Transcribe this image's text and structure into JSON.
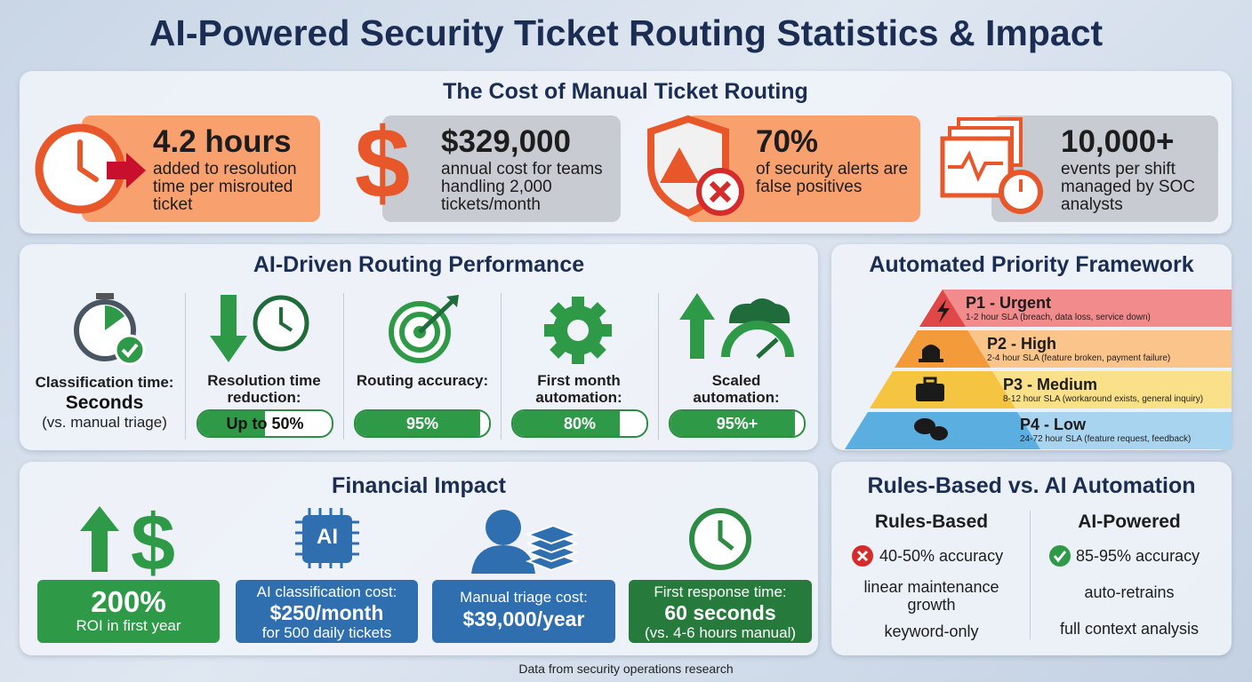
{
  "title": "AI-Powered Security Ticket Routing Statistics & Impact",
  "cost": {
    "heading": "The Cost of Manual Ticket Routing",
    "cards": [
      {
        "value": "4.2 hours",
        "description": "added to resolution time per misrouted ticket"
      },
      {
        "value": "$329,000",
        "description": "annual cost for teams handling 2,000 tickets/month"
      },
      {
        "value": "70%",
        "description": "of security alerts are false positives"
      },
      {
        "value": "10,000+",
        "description": "events per shift managed by SOC analysts"
      }
    ]
  },
  "performance": {
    "heading": "AI-Driven Routing Performance",
    "items": [
      {
        "label": "Classification time:",
        "value": "Seconds",
        "note": "(vs. manual triage)"
      },
      {
        "label": "Resolution time reduction:",
        "value": "Up to 50%"
      },
      {
        "label": "Routing accuracy:",
        "value": "95%"
      },
      {
        "label": "First month automation:",
        "value": "80%"
      },
      {
        "label": "Scaled automation:",
        "value": "95%+"
      }
    ]
  },
  "priority": {
    "heading": "Automated Priority Framework",
    "levels": [
      {
        "name": "P1 - Urgent",
        "sla": "1-2 hour SLA (breach, data loss, service down)"
      },
      {
        "name": "P2 - High",
        "sla": "2-4 hour SLA (feature broken, payment failure)"
      },
      {
        "name": "P3 - Medium",
        "sla": "8-12 hour SLA (workaround exists, general inquiry)"
      },
      {
        "name": "P4 - Low",
        "sla": "24-72 hour SLA (feature request, feedback)"
      }
    ]
  },
  "financial": {
    "heading": "Financial Impact",
    "items": [
      {
        "value": "200%",
        "label": "ROI in first year"
      },
      {
        "icon_text": "AI",
        "label": "AI classification cost:",
        "value": "$250/month",
        "note": "for 500 daily tickets"
      },
      {
        "label": "Manual triage cost:",
        "value": "$39,000/year"
      },
      {
        "label": "First response time:",
        "value": "60 seconds",
        "note": "(vs. 4-6 hours manual)"
      }
    ]
  },
  "comparison": {
    "heading": "Rules-Based vs. AI Automation",
    "columns": [
      {
        "title": "Rules-Based",
        "rows": [
          "40-50% accuracy",
          "linear maintenance growth",
          "keyword-only"
        ]
      },
      {
        "title": "AI-Powered",
        "rows": [
          "85-95% accuracy",
          "auto-retrains",
          "full context analysis"
        ]
      }
    ]
  },
  "footer": "Data from security operations research"
}
